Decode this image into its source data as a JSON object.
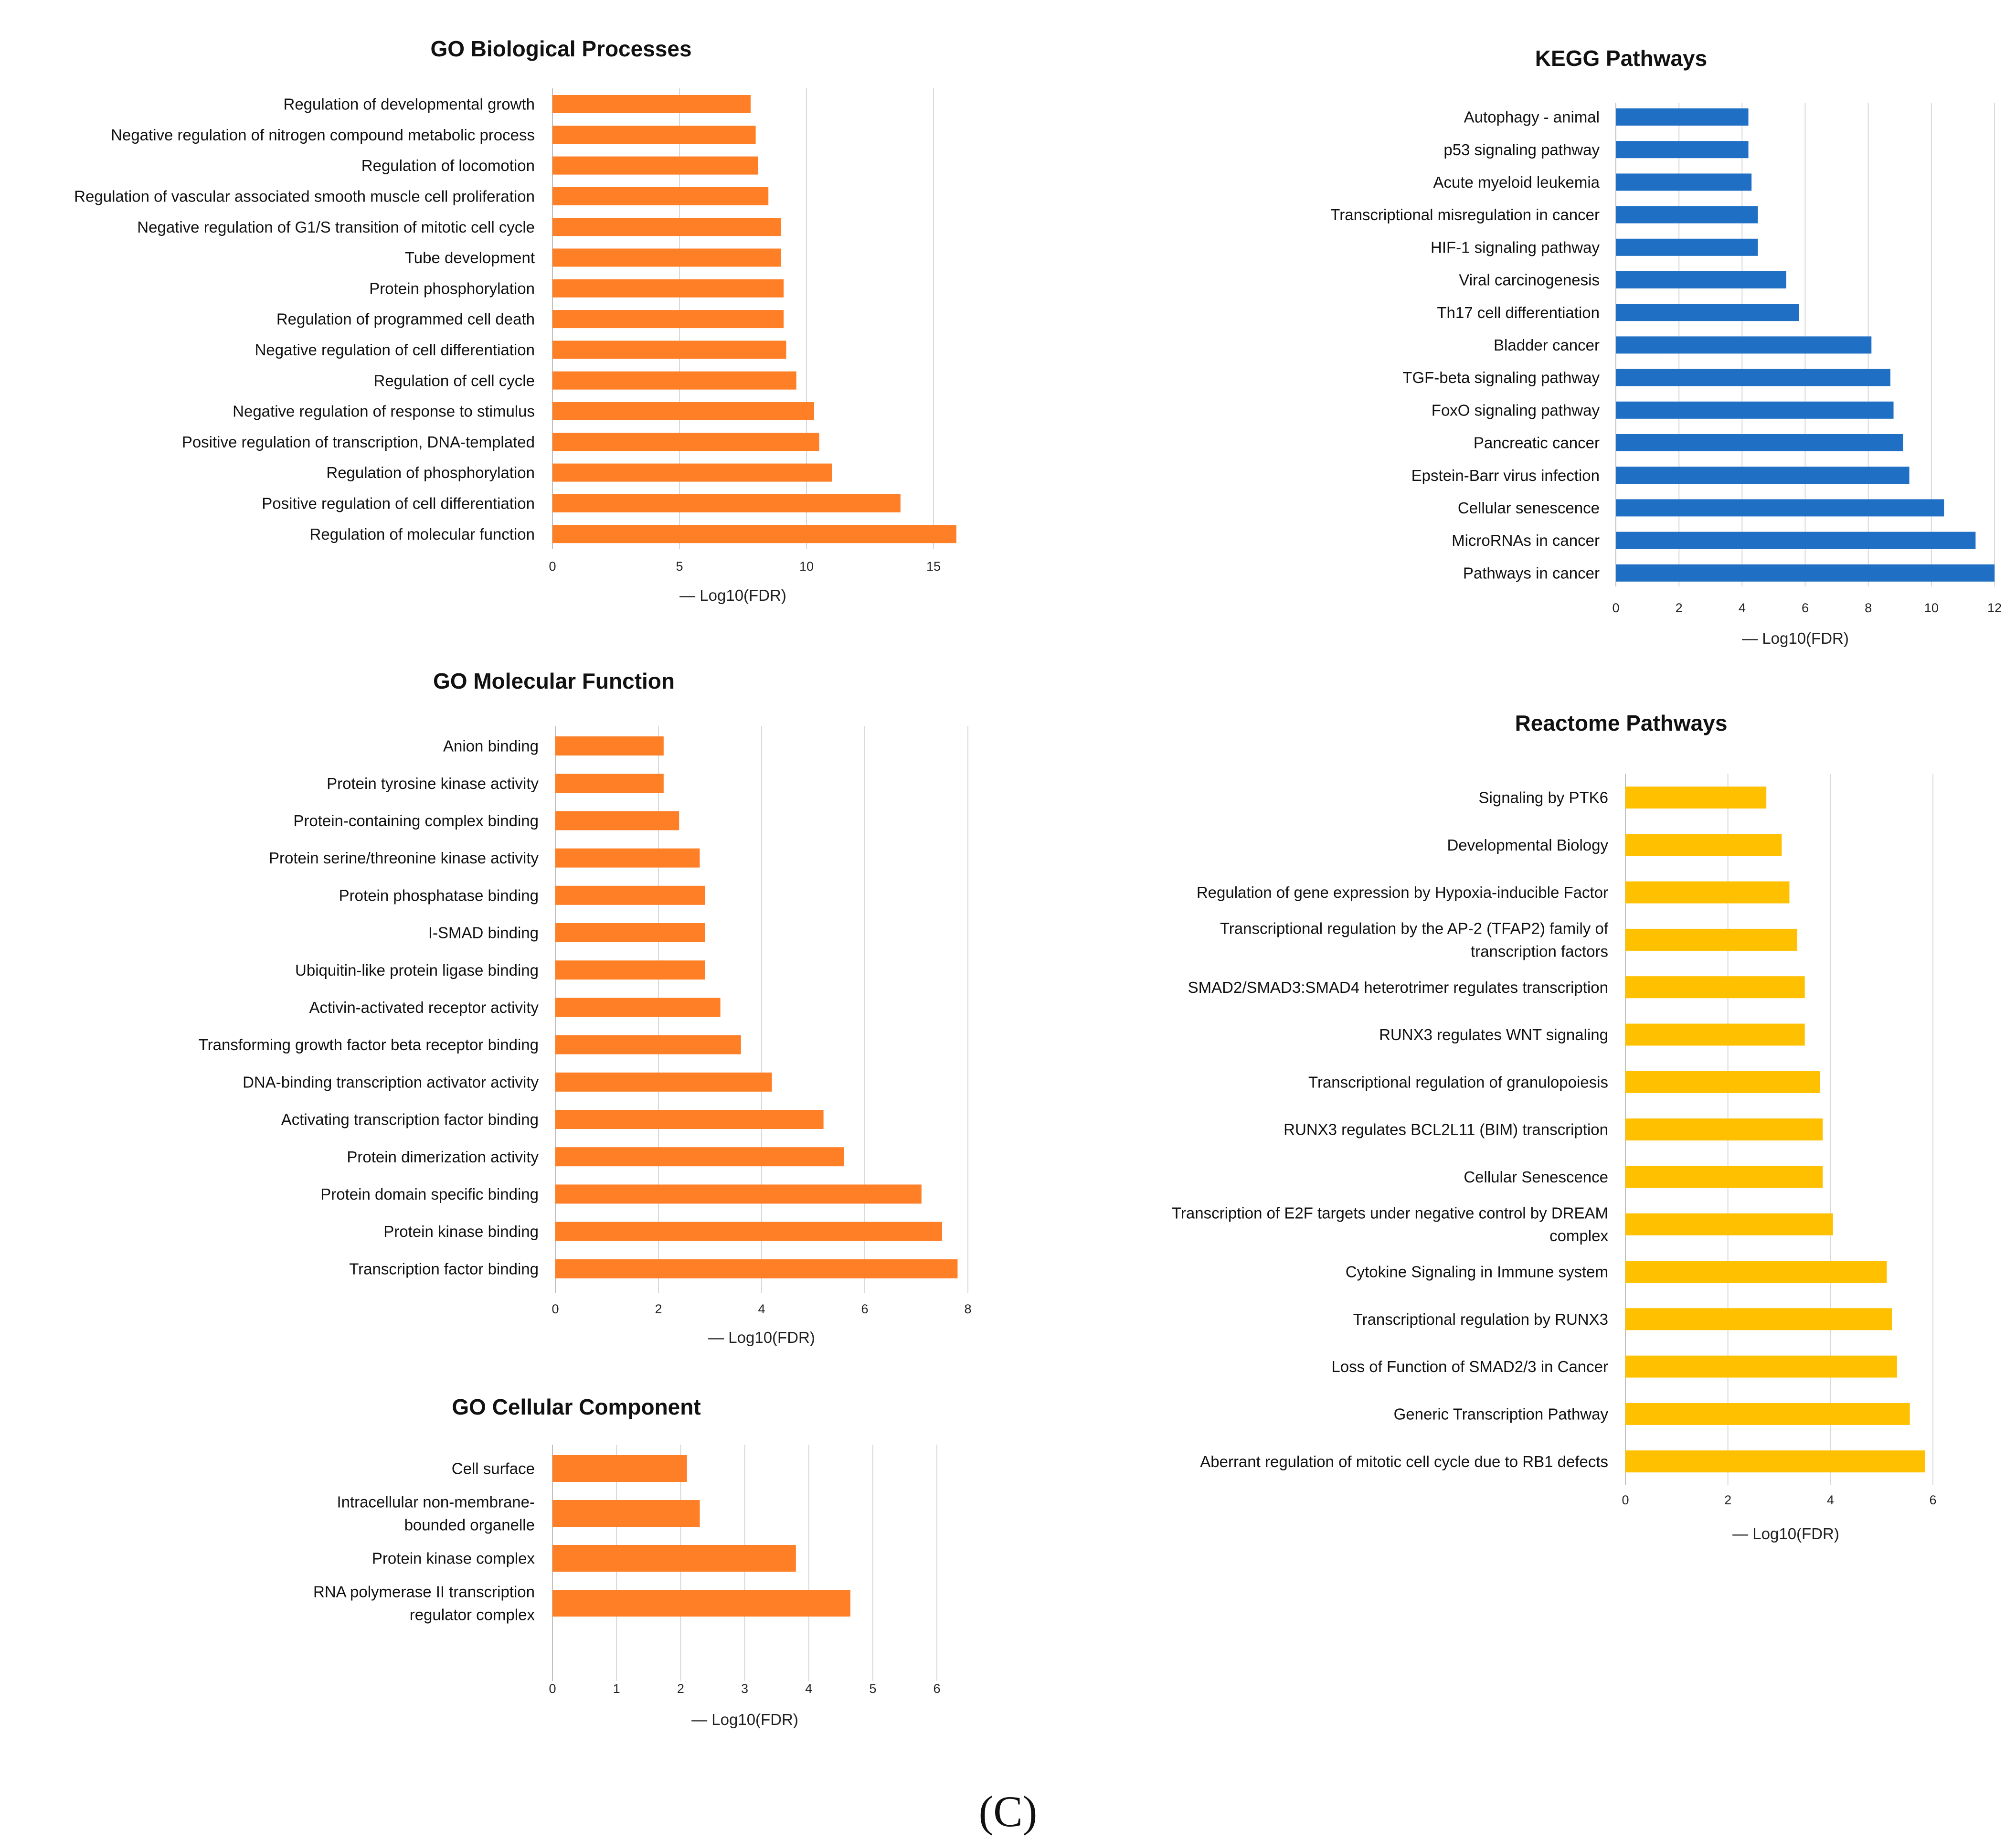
{
  "figure": {
    "label": "(C)"
  },
  "colors": {
    "orange": "#FF7F27",
    "blue": "#1F6FC5",
    "yellow": "#FFC000",
    "grid": "#D9D9D9",
    "axis": "#BFBFBF"
  },
  "chart_data": [
    {
      "id": "bp",
      "type": "bar",
      "orientation": "horizontal",
      "title": "GO Biological Processes",
      "xlabel": "— Log10(FDR)",
      "xlim": [
        0,
        15
      ],
      "xticks": [
        0,
        5,
        10,
        15
      ],
      "grid": true,
      "color": "#FF7F27",
      "categories": [
        "Regulation of developmental growth",
        "Negative regulation of nitrogen compound metabolic process",
        "Regulation of locomotion",
        "Regulation of vascular associated smooth muscle cell proliferation",
        "Negative regulation of G1/S transition of mitotic cell cycle",
        "Tube development",
        "Protein phosphorylation",
        "Regulation of programmed cell death",
        "Negative regulation of cell differentiation",
        "Regulation of cell cycle",
        "Negative regulation of response to stimulus",
        "Positive regulation of transcription, DNA-templated",
        "Regulation of phosphorylation",
        "Positive regulation of cell differentiation",
        "Regulation of molecular function"
      ],
      "values": [
        7.8,
        8.0,
        8.1,
        8.5,
        9.0,
        9.0,
        9.1,
        9.1,
        9.2,
        9.6,
        10.3,
        10.5,
        11.0,
        13.7,
        15.9
      ]
    },
    {
      "id": "kegg",
      "type": "bar",
      "orientation": "horizontal",
      "title": "KEGG Pathways",
      "xlabel": "— Log10(FDR)",
      "xlim": [
        0,
        12
      ],
      "xticks": [
        0,
        2,
        4,
        6,
        8,
        10,
        12
      ],
      "grid": true,
      "color": "#1F6FC5",
      "categories": [
        "Autophagy - animal",
        "p53 signaling pathway",
        "Acute myeloid leukemia",
        "Transcriptional misregulation in cancer",
        "HIF-1 signaling pathway",
        "Viral carcinogenesis",
        "Th17 cell differentiation",
        "Bladder cancer",
        "TGF-beta signaling pathway",
        "FoxO signaling pathway",
        "Pancreatic cancer",
        "Epstein-Barr virus infection",
        "Cellular senescence",
        "MicroRNAs in cancer",
        "Pathways in cancer"
      ],
      "values": [
        4.2,
        4.2,
        4.3,
        4.5,
        4.5,
        5.4,
        5.8,
        8.1,
        8.7,
        8.8,
        9.1,
        9.3,
        10.4,
        11.4,
        12.0
      ]
    },
    {
      "id": "mf",
      "type": "bar",
      "orientation": "horizontal",
      "title": "GO Molecular Function",
      "xlabel": "— Log10(FDR)",
      "xlim": [
        0,
        8
      ],
      "xticks": [
        0,
        2,
        4,
        6,
        8
      ],
      "grid": true,
      "color": "#FF7F27",
      "categories": [
        "Anion binding",
        "Protein tyrosine kinase activity",
        "Protein-containing complex binding",
        "Protein serine/threonine kinase activity",
        "Protein phosphatase binding",
        "I-SMAD binding",
        "Ubiquitin-like protein ligase binding",
        "Activin-activated receptor activity",
        "Transforming growth factor beta receptor binding",
        "DNA-binding transcription activator activity",
        "Activating transcription factor binding",
        "Protein dimerization activity",
        "Protein domain specific binding",
        "Protein kinase binding",
        "Transcription factor binding"
      ],
      "values": [
        2.1,
        2.1,
        2.4,
        2.8,
        2.9,
        2.9,
        2.9,
        3.2,
        3.6,
        4.2,
        5.2,
        5.6,
        7.1,
        7.5,
        7.8
      ]
    },
    {
      "id": "cc",
      "type": "bar",
      "orientation": "horizontal",
      "title": "GO Cellular Component",
      "xlabel": "— Log10(FDR)",
      "xlim": [
        0,
        6
      ],
      "xticks": [
        0,
        1,
        2,
        3,
        4,
        5,
        6
      ],
      "grid": true,
      "color": "#FF7F27",
      "categories": [
        "Cell surface",
        [
          "Intracellular non-membrane-",
          "bounded organelle"
        ],
        "Protein kinase complex",
        [
          "RNA polymerase II transcription",
          "regulator complex"
        ]
      ],
      "values": [
        2.1,
        2.3,
        3.8,
        4.65
      ]
    },
    {
      "id": "reactome",
      "type": "bar",
      "orientation": "horizontal",
      "title": "Reactome Pathways",
      "xlabel": "— Log10(FDR)",
      "xlim": [
        0,
        6
      ],
      "xticks": [
        0,
        2,
        4,
        6
      ],
      "grid": true,
      "color": "#FFC000",
      "categories": [
        "Signaling by PTK6",
        "Developmental Biology",
        "Regulation of gene expression by Hypoxia-inducible Factor",
        [
          "Transcriptional regulation by the AP-2 (TFAP2) family of",
          "transcription factors"
        ],
        "SMAD2/SMAD3:SMAD4 heterotrimer regulates transcription",
        "RUNX3 regulates WNT signaling",
        "Transcriptional regulation of granulopoiesis",
        "RUNX3 regulates BCL2L11 (BIM) transcription",
        "Cellular Senescence",
        [
          "Transcription of E2F targets under negative control by DREAM",
          "complex"
        ],
        "Cytokine Signaling in Immune system",
        "Transcriptional regulation by RUNX3",
        "Loss of Function of SMAD2/3 in Cancer",
        "Generic Transcription Pathway",
        "Aberrant regulation of mitotic cell cycle due to RB1 defects"
      ],
      "values": [
        2.75,
        3.05,
        3.2,
        3.35,
        3.5,
        3.5,
        3.8,
        3.85,
        3.85,
        4.05,
        5.1,
        5.2,
        5.3,
        5.55,
        5.85
      ]
    }
  ]
}
